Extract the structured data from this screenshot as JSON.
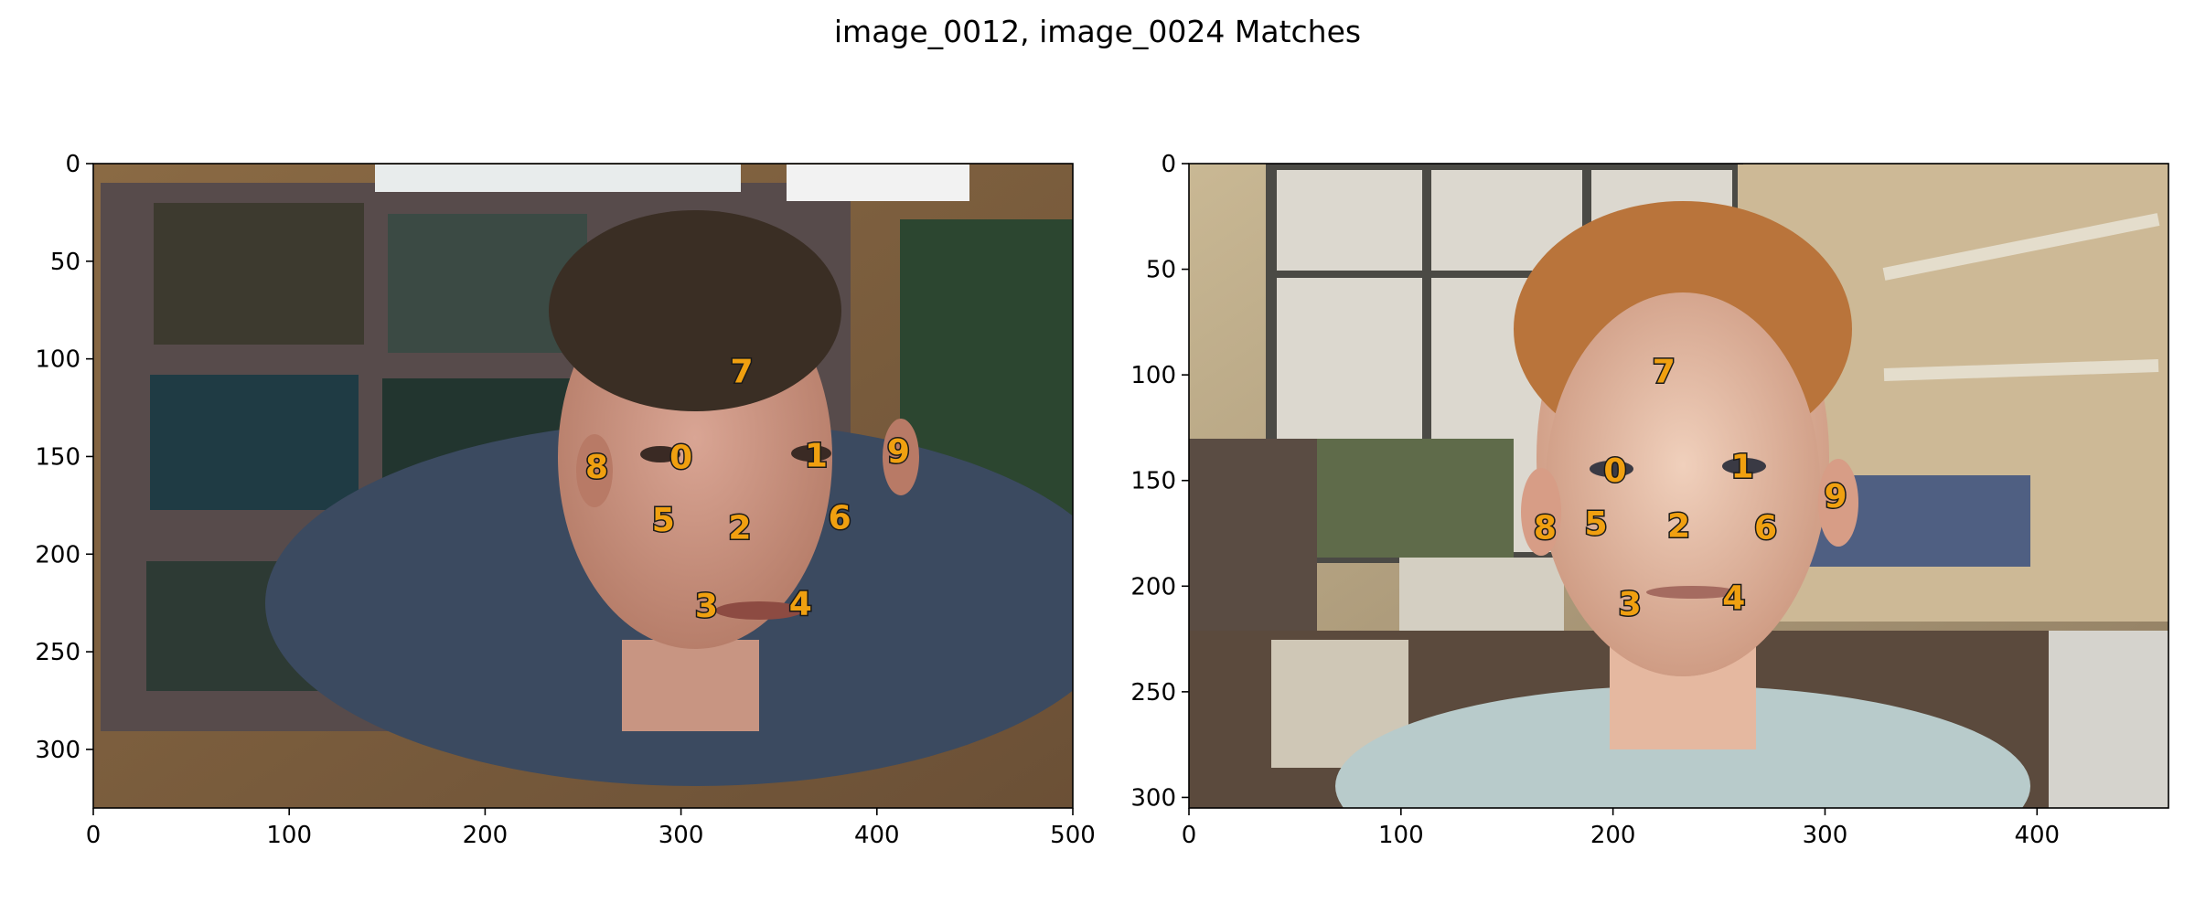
{
  "title": "image_0012, image_0024 Matches",
  "chart_data": [
    {
      "type": "scatter",
      "title": "",
      "xlabel": "",
      "ylabel": "",
      "xlim": [
        0,
        500
      ],
      "ylim": [
        330,
        0
      ],
      "x_ticks": [
        0,
        100,
        200,
        300,
        400,
        500
      ],
      "y_ticks": [
        0,
        50,
        100,
        150,
        200,
        250,
        300
      ],
      "grid": false,
      "background": "photo: man in blue shirt in front of a cork board with party photos",
      "points": [
        {
          "label": "0",
          "x": 300,
          "y": 150
        },
        {
          "label": "1",
          "x": 369,
          "y": 149
        },
        {
          "label": "2",
          "x": 330,
          "y": 186
        },
        {
          "label": "3",
          "x": 313,
          "y": 226
        },
        {
          "label": "4",
          "x": 361,
          "y": 225
        },
        {
          "label": "5",
          "x": 291,
          "y": 182
        },
        {
          "label": "6",
          "x": 381,
          "y": 181
        },
        {
          "label": "7",
          "x": 331,
          "y": 106
        },
        {
          "label": "8",
          "x": 257,
          "y": 155
        },
        {
          "label": "9",
          "x": 411,
          "y": 147
        }
      ]
    },
    {
      "type": "scatter",
      "title": "",
      "xlabel": "",
      "ylabel": "",
      "xlim": [
        0,
        462
      ],
      "ylim": [
        305,
        0
      ],
      "x_ticks": [
        0,
        100,
        200,
        300,
        400
      ],
      "y_ticks": [
        0,
        50,
        100,
        150,
        200,
        250,
        300
      ],
      "grid": false,
      "background": "photo: red-haired man in light shirt in an office with windows",
      "points": [
        {
          "label": "0",
          "x": 201,
          "y": 145
        },
        {
          "label": "1",
          "x": 261,
          "y": 143
        },
        {
          "label": "2",
          "x": 231,
          "y": 171
        },
        {
          "label": "3",
          "x": 208,
          "y": 208
        },
        {
          "label": "4",
          "x": 257,
          "y": 205
        },
        {
          "label": "5",
          "x": 192,
          "y": 170
        },
        {
          "label": "6",
          "x": 272,
          "y": 172
        },
        {
          "label": "7",
          "x": 224,
          "y": 98
        },
        {
          "label": "8",
          "x": 168,
          "y": 172
        },
        {
          "label": "9",
          "x": 305,
          "y": 157
        }
      ]
    }
  ],
  "colors": {
    "keypoint_fill": "#f0a010",
    "keypoint_outline": "#1a1a1a"
  }
}
